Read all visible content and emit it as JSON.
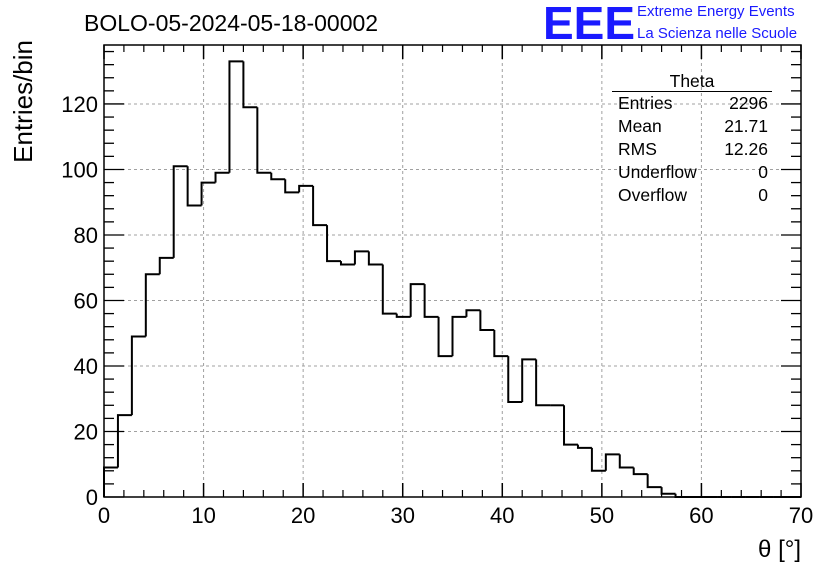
{
  "title": "BOLO-05-2024-05-18-00002",
  "logo": {
    "mark": "EEE",
    "line1": "Extreme Energy Events",
    "line2": "La Scienza nelle Scuole",
    "color": "#1a1aff"
  },
  "stats": {
    "title": "Theta",
    "rows": [
      {
        "label": "Entries",
        "value": "2296"
      },
      {
        "label": "Mean",
        "value": "21.71"
      },
      {
        "label": "RMS",
        "value": "12.26"
      },
      {
        "label": "Underflow",
        "value": "0"
      },
      {
        "label": "Overflow",
        "value": "0"
      }
    ]
  },
  "chart_data": {
    "type": "bar",
    "title": "BOLO-05-2024-05-18-00002",
    "xlabel": "θ [°]",
    "ylabel": "Entries/bin",
    "xlim": [
      0,
      70
    ],
    "ylim": [
      0,
      138
    ],
    "xticks": [
      0,
      10,
      20,
      30,
      40,
      50,
      60,
      70
    ],
    "yticks": [
      0,
      20,
      40,
      60,
      80,
      100,
      120
    ],
    "grid": true,
    "bin_width": 1.4,
    "values": [
      9,
      25,
      49,
      68,
      73,
      101,
      89,
      96,
      99,
      133,
      119,
      99,
      97,
      93,
      95,
      83,
      72,
      71,
      75,
      71,
      56,
      55,
      65,
      55,
      43,
      55,
      57,
      51,
      43,
      29,
      42,
      28,
      28,
      16,
      15,
      8,
      13,
      9,
      7,
      3,
      1,
      0,
      0,
      0,
      0,
      0,
      0,
      0,
      0,
      0
    ],
    "line_color": "#000000"
  }
}
